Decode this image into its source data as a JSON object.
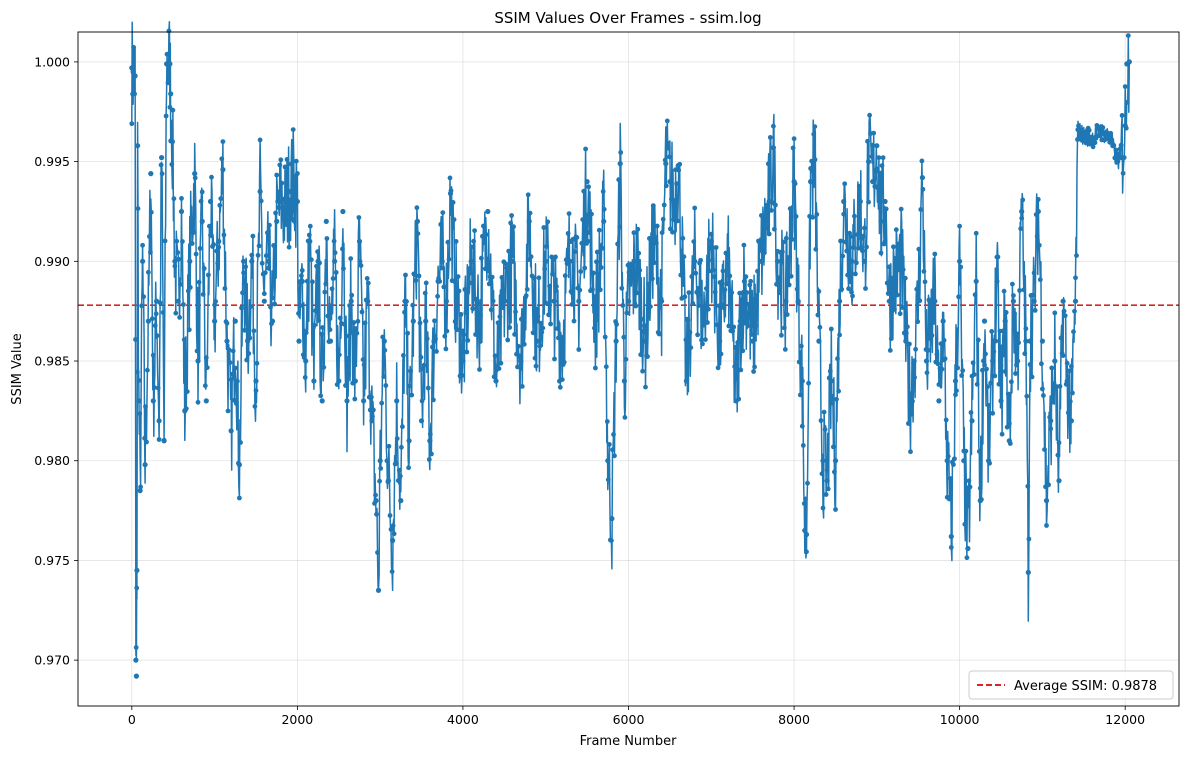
{
  "chart_data": {
    "type": "line",
    "title": "SSIM Values Over Frames - ssim.log",
    "xlabel": "Frame Number",
    "ylabel": "SSIM Value",
    "xlim": [
      -650,
      12650
    ],
    "ylim": [
      0.9677,
      1.0015
    ],
    "xticks": [
      0,
      2000,
      4000,
      6000,
      8000,
      10000,
      12000
    ],
    "xtick_labels": [
      "0",
      "2000",
      "4000",
      "6000",
      "8000",
      "10000",
      "12000"
    ],
    "yticks": [
      0.97,
      0.975,
      0.98,
      0.985,
      0.99,
      0.995,
      1.0
    ],
    "ytick_labels": [
      "0.970",
      "0.975",
      "0.980",
      "0.985",
      "0.990",
      "0.995",
      "1.000"
    ],
    "grid": true,
    "legend_position": "lower-right",
    "colors": {
      "series": "#1f77b4",
      "average": "#d62728"
    },
    "average": {
      "name": "Average SSIM: 0.9878",
      "value": 0.9878
    },
    "series": [
      {
        "marker": "dot",
        "x_range": [
          0,
          12050
        ],
        "points": [
          [
            0,
            0.9997
          ],
          [
            15,
            0.9995
          ],
          [
            40,
            0.9993
          ],
          [
            50,
            0.97
          ],
          [
            55,
            0.9692
          ],
          [
            62,
            0.9745
          ],
          [
            70,
            0.9958
          ],
          [
            85,
            0.983
          ],
          [
            100,
            0.9785
          ],
          [
            130,
            0.99
          ],
          [
            160,
            0.9798
          ],
          [
            200,
            0.987
          ],
          [
            230,
            0.9944
          ],
          [
            260,
            0.983
          ],
          [
            300,
            0.988
          ],
          [
            330,
            0.982
          ],
          [
            360,
            0.9952
          ],
          [
            390,
            0.981
          ],
          [
            420,
            0.9999
          ],
          [
            460,
            0.9999
          ],
          [
            470,
            0.9984
          ],
          [
            490,
            0.996
          ],
          [
            520,
            0.99
          ],
          [
            560,
            0.988
          ],
          [
            600,
            0.9925
          ],
          [
            640,
            0.9825
          ],
          [
            700,
            0.99
          ],
          [
            760,
            0.9944
          ],
          [
            800,
            0.985
          ],
          [
            850,
            0.992
          ],
          [
            900,
            0.983
          ],
          [
            950,
            0.993
          ],
          [
            1000,
            0.987
          ],
          [
            1050,
            0.991
          ],
          [
            1100,
            0.9946
          ],
          [
            1150,
            0.986
          ],
          [
            1200,
            0.9815
          ],
          [
            1250,
            0.987
          ],
          [
            1300,
            0.9798
          ],
          [
            1350,
            0.99
          ],
          [
            1400,
            0.986
          ],
          [
            1450,
            0.99
          ],
          [
            1500,
            0.984
          ],
          [
            1550,
            0.9935
          ],
          [
            1600,
            0.988
          ],
          [
            1650,
            0.99
          ],
          [
            1700,
            0.987
          ],
          [
            1750,
            0.992
          ],
          [
            1800,
            0.993
          ],
          [
            1850,
            0.9925
          ],
          [
            1900,
            0.9935
          ],
          [
            1950,
            0.9941
          ],
          [
            2000,
            0.993
          ],
          [
            2020,
            0.986
          ],
          [
            2060,
            0.989
          ],
          [
            2100,
            0.985
          ],
          [
            2150,
            0.991
          ],
          [
            2200,
            0.984
          ],
          [
            2250,
            0.99
          ],
          [
            2300,
            0.983
          ],
          [
            2350,
            0.992
          ],
          [
            2400,
            0.986
          ],
          [
            2450,
            0.99
          ],
          [
            2500,
            0.984
          ],
          [
            2550,
            0.9925
          ],
          [
            2600,
            0.983
          ],
          [
            2650,
            0.988
          ],
          [
            2700,
            0.984
          ],
          [
            2750,
            0.991
          ],
          [
            2800,
            0.983
          ],
          [
            2850,
            0.988
          ],
          [
            2900,
            0.982
          ],
          [
            2950,
            0.978
          ],
          [
            2980,
            0.9735
          ],
          [
            3000,
            0.98
          ],
          [
            3050,
            0.986
          ],
          [
            3100,
            0.979
          ],
          [
            3150,
            0.976
          ],
          [
            3200,
            0.983
          ],
          [
            3250,
            0.978
          ],
          [
            3300,
            0.988
          ],
          [
            3350,
            0.981
          ],
          [
            3400,
            0.987
          ],
          [
            3450,
            0.992
          ],
          [
            3500,
            0.982
          ],
          [
            3550,
            0.987
          ],
          [
            3600,
            0.981
          ],
          [
            3650,
            0.986
          ],
          [
            3700,
            0.989
          ],
          [
            3750,
            0.99
          ],
          [
            3800,
            0.988
          ],
          [
            3850,
            0.9934
          ],
          [
            3900,
            0.989
          ],
          [
            4000,
            0.985
          ],
          [
            4100,
            0.99
          ],
          [
            4200,
            0.987
          ],
          [
            4300,
            0.9925
          ],
          [
            4400,
            0.984
          ],
          [
            4500,
            0.988
          ],
          [
            4600,
            0.99
          ],
          [
            4700,
            0.985
          ],
          [
            4800,
            0.992
          ],
          [
            4900,
            0.986
          ],
          [
            5000,
            0.99
          ],
          [
            5100,
            0.988
          ],
          [
            5200,
            0.986
          ],
          [
            5300,
            0.991
          ],
          [
            5400,
            0.988
          ],
          [
            5500,
            0.994
          ],
          [
            5600,
            0.987
          ],
          [
            5700,
            0.992
          ],
          [
            5750,
            0.98
          ],
          [
            5800,
            0.9771
          ],
          [
            5850,
            0.986
          ],
          [
            5900,
            0.9949
          ],
          [
            5950,
            0.984
          ],
          [
            6000,
            0.988
          ],
          [
            6100,
            0.99
          ],
          [
            6200,
            0.986
          ],
          [
            6300,
            0.991
          ],
          [
            6400,
            0.988
          ],
          [
            6450,
            0.9949
          ],
          [
            6500,
            0.994
          ],
          [
            6550,
            0.993
          ],
          [
            6600,
            0.9948
          ],
          [
            6650,
            0.99
          ],
          [
            6700,
            0.984
          ],
          [
            6800,
            0.99
          ],
          [
            6900,
            0.987
          ],
          [
            7000,
            0.991
          ],
          [
            7100,
            0.986
          ],
          [
            7200,
            0.99
          ],
          [
            7300,
            0.983
          ],
          [
            7350,
            0.987
          ],
          [
            7400,
            0.989
          ],
          [
            7500,
            0.986
          ],
          [
            7600,
            0.99
          ],
          [
            7700,
            0.993
          ],
          [
            7750,
            0.9957
          ],
          [
            7800,
            0.99
          ],
          [
            7900,
            0.988
          ],
          [
            8000,
            0.994
          ],
          [
            8050,
            0.988
          ],
          [
            8100,
            0.984
          ],
          [
            8130,
            0.9765
          ],
          [
            8150,
            0.9763
          ],
          [
            8200,
            0.994
          ],
          [
            8250,
            0.9951
          ],
          [
            8300,
            0.986
          ],
          [
            8350,
            0.98
          ],
          [
            8400,
            0.979
          ],
          [
            8450,
            0.984
          ],
          [
            8500,
            0.98
          ],
          [
            8550,
            0.988
          ],
          [
            8600,
            0.993
          ],
          [
            8700,
            0.99
          ],
          [
            8800,
            0.993
          ],
          [
            8850,
            0.99
          ],
          [
            8900,
            0.995
          ],
          [
            8950,
            0.994
          ],
          [
            9000,
            0.9958
          ],
          [
            9050,
            0.992
          ],
          [
            9100,
            0.993
          ],
          [
            9150,
            0.988
          ],
          [
            9200,
            0.989
          ],
          [
            9300,
            0.99
          ],
          [
            9350,
            0.986
          ],
          [
            9400,
            0.983
          ],
          [
            9450,
            0.985
          ],
          [
            9500,
            0.988
          ],
          [
            9550,
            0.9942
          ],
          [
            9600,
            0.985
          ],
          [
            9700,
            0.988
          ],
          [
            9750,
            0.983
          ],
          [
            9800,
            0.987
          ],
          [
            9850,
            0.98
          ],
          [
            9900,
            0.9762
          ],
          [
            9950,
            0.984
          ],
          [
            10000,
            0.99
          ],
          [
            10050,
            0.98
          ],
          [
            10100,
            0.9756
          ],
          [
            10150,
            0.982
          ],
          [
            10200,
            0.989
          ],
          [
            10250,
            0.978
          ],
          [
            10300,
            0.987
          ],
          [
            10350,
            0.98
          ],
          [
            10400,
            0.985
          ],
          [
            10450,
            0.989
          ],
          [
            10500,
            0.983
          ],
          [
            10550,
            0.987
          ],
          [
            10600,
            0.981
          ],
          [
            10650,
            0.988
          ],
          [
            10700,
            0.985
          ],
          [
            10750,
            0.9925
          ],
          [
            10800,
            0.986
          ],
          [
            10830,
            0.9744
          ],
          [
            10850,
            0.986
          ],
          [
            10900,
            0.988
          ],
          [
            10950,
            0.9925
          ],
          [
            11000,
            0.986
          ],
          [
            11050,
            0.978
          ],
          [
            11100,
            0.982
          ],
          [
            11150,
            0.985
          ],
          [
            11200,
            0.979
          ],
          [
            11250,
            0.988
          ],
          [
            11300,
            0.984
          ],
          [
            11350,
            0.982
          ],
          [
            11400,
            0.988
          ],
          [
            11430,
            0.9966
          ],
          [
            11500,
            0.9963
          ],
          [
            11600,
            0.9962
          ],
          [
            11700,
            0.9965
          ],
          [
            11800,
            0.9963
          ],
          [
            11850,
            0.9958
          ],
          [
            11900,
            0.995
          ],
          [
            11950,
            0.9952
          ],
          [
            12000,
            0.9968
          ],
          [
            12020,
            0.9999
          ],
          [
            12050,
            1.0
          ]
        ]
      }
    ]
  }
}
